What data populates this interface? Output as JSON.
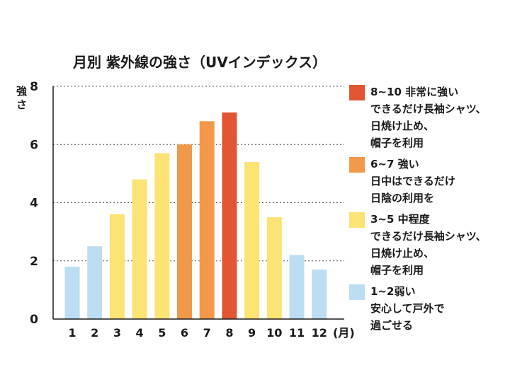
{
  "chart_data": {
    "type": "bar",
    "title": "月別 紫外線の強さ（UVインデックス）",
    "ylabel": "強さ",
    "xunit": "(月)",
    "ylim": [
      0,
      8
    ],
    "yticks": [
      "0",
      "2",
      "4",
      "6",
      "8"
    ],
    "grid": true,
    "legend_position": "right",
    "categories": [
      "1",
      "2",
      "3",
      "4",
      "5",
      "6",
      "7",
      "8",
      "9",
      "10",
      "11",
      "12"
    ],
    "values": [
      1.8,
      2.5,
      3.6,
      4.8,
      5.7,
      6.0,
      6.8,
      7.1,
      5.4,
      3.5,
      2.2,
      1.7
    ],
    "bar_colors": [
      "#bdddf2",
      "#bdddf2",
      "#fbe374",
      "#fbe374",
      "#fbe374",
      "#f2984a",
      "#f2984a",
      "#e25532",
      "#fbe374",
      "#fbe374",
      "#bdddf2",
      "#bdddf2"
    ],
    "legend": [
      {
        "color": "#e25532",
        "lines": [
          "8~10 非常に強い",
          "できるだけ長袖シャツ、",
          "日焼け止め、",
          "帽子を利用"
        ]
      },
      {
        "color": "#f2984a",
        "lines": [
          "6~7 強い",
          "日中はできるだけ",
          "日陰の利用を"
        ]
      },
      {
        "color": "#fbe374",
        "lines": [
          "3~5 中程度",
          "できるだけ長袖シャツ、",
          "日焼け止め、",
          "帽子を利用"
        ]
      },
      {
        "color": "#bdddf2",
        "lines": [
          "1~2弱い",
          "安心して戸外で",
          "過ごせる"
        ]
      }
    ]
  }
}
